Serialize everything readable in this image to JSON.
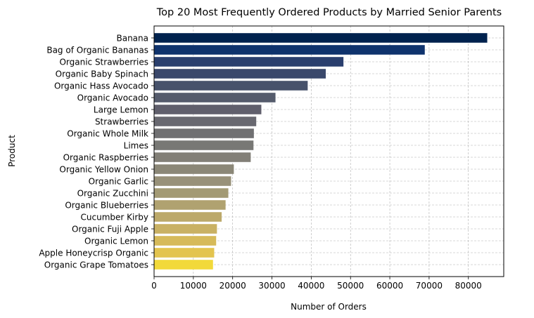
{
  "chart_data": {
    "type": "bar",
    "orientation": "horizontal",
    "title": "Top 20 Most Frequently Ordered Products by Married Senior Parents",
    "xlabel": "Number of Orders",
    "ylabel": "Product",
    "xlim": [
      0,
      89000
    ],
    "xticks": [
      0,
      10000,
      20000,
      30000,
      40000,
      50000,
      60000,
      70000,
      80000
    ],
    "grid": true,
    "categories": [
      "Banana",
      "Bag of Organic Bananas",
      "Organic Strawberries",
      "Organic Baby Spinach",
      "Organic Hass Avocado",
      "Organic Avocado",
      "Large Lemon",
      "Strawberries",
      "Organic Whole Milk",
      "Limes",
      "Organic Raspberries",
      "Organic Yellow Onion",
      "Organic Garlic",
      "Organic Zucchini",
      "Organic Blueberries",
      "Cucumber Kirby",
      "Organic Fuji Apple",
      "Organic Lemon",
      "Apple Honeycrisp Organic",
      "Organic Grape Tomatoes"
    ],
    "values": [
      84800,
      68900,
      48200,
      43700,
      39100,
      30900,
      27300,
      26000,
      25400,
      25300,
      24600,
      20300,
      19600,
      18900,
      18200,
      17200,
      16000,
      15800,
      15300,
      15000
    ],
    "colors": [
      "#00224e",
      "#0f336d",
      "#2a3f6e",
      "#3a486b",
      "#47526b",
      "#555b6c",
      "#605f6c",
      "#686870",
      "#707072",
      "#787875",
      "#827f77",
      "#8b8777",
      "#989179",
      "#a39a74",
      "#b0a270",
      "#bca96a",
      "#c9b164",
      "#d6ba5a",
      "#e3c44f",
      "#f2d93a"
    ]
  }
}
